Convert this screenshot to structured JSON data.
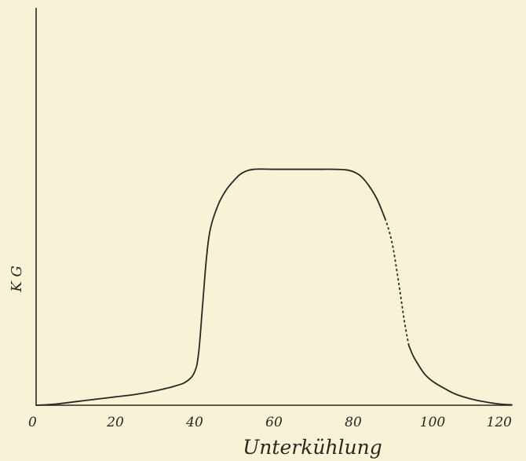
{
  "chart_data": {
    "type": "line",
    "title": "",
    "xlabel": "Unterkühlung",
    "ylabel": "K G",
    "xlim": [
      0,
      120
    ],
    "ylim": [
      0,
      1
    ],
    "x_ticks": [
      0,
      20,
      40,
      60,
      80,
      100,
      120
    ],
    "x_tick_labels": [
      "0",
      "20",
      "40",
      "60",
      "80",
      "100",
      "120"
    ],
    "grid": false,
    "legend": "none",
    "series": [
      {
        "style": "solid",
        "x": [
          0,
          5,
          10,
          15,
          20,
          25,
          30,
          35,
          38,
          40,
          41,
          42,
          43,
          44,
          46,
          48,
          50,
          52,
          55,
          60,
          65,
          70,
          75,
          78,
          80,
          82,
          84,
          86,
          88
        ],
        "y": [
          0,
          0.005,
          0.015,
          0.025,
          0.035,
          0.045,
          0.06,
          0.08,
          0.1,
          0.14,
          0.22,
          0.42,
          0.62,
          0.74,
          0.84,
          0.9,
          0.94,
          0.97,
          0.985,
          0.985,
          0.985,
          0.985,
          0.985,
          0.983,
          0.975,
          0.955,
          0.915,
          0.86,
          0.78
        ]
      },
      {
        "style": "dashed",
        "x": [
          88,
          89,
          90,
          91,
          92,
          93,
          94
        ],
        "y": [
          0.78,
          0.73,
          0.66,
          0.56,
          0.45,
          0.34,
          0.25
        ]
      },
      {
        "style": "solid",
        "x": [
          94,
          95,
          96,
          98,
          100,
          103,
          106,
          110,
          114,
          117,
          120
        ],
        "y": [
          0.25,
          0.21,
          0.18,
          0.13,
          0.1,
          0.07,
          0.045,
          0.025,
          0.012,
          0.005,
          0.002
        ]
      }
    ]
  }
}
